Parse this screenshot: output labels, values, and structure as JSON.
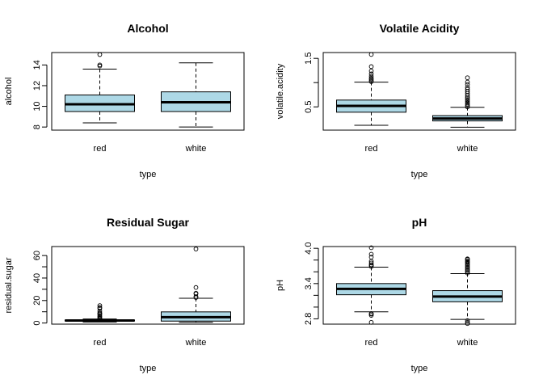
{
  "chart_data": [
    {
      "type": "boxplot",
      "title": "Alcohol",
      "xlabel": "type",
      "ylabel": "alcohol",
      "categories": [
        "red",
        "white"
      ],
      "ylim": [
        7.7,
        15.2
      ],
      "yticks": [
        8,
        10,
        12,
        14
      ],
      "fill_color": "#add8e6",
      "boxes": [
        {
          "name": "red",
          "whisker_low": 8.4,
          "q1": 9.5,
          "median": 10.2,
          "q3": 11.1,
          "whisker_high": 13.6,
          "outliers": [
            13.9,
            14.0,
            15.0
          ]
        },
        {
          "name": "white",
          "whisker_low": 8.0,
          "q1": 9.5,
          "median": 10.4,
          "q3": 11.4,
          "whisker_high": 14.2,
          "outliers": []
        }
      ]
    },
    {
      "type": "boxplot",
      "title": "Volatile Acidity",
      "xlabel": "type",
      "ylabel": "volatile.acidity",
      "categories": [
        "red",
        "white"
      ],
      "ylim": [
        0.02,
        1.62
      ],
      "yticks": [
        0.5,
        1.0,
        1.5
      ],
      "ytick_labels": [
        "0.5",
        "",
        "1.5"
      ],
      "fill_color": "#add8e6",
      "boxes": [
        {
          "name": "red",
          "whisker_low": 0.12,
          "q1": 0.39,
          "median": 0.52,
          "q3": 0.64,
          "whisker_high": 1.01,
          "outliers": [
            1.02,
            1.04,
            1.07,
            1.09,
            1.13,
            1.18,
            1.24,
            1.33,
            1.58
          ]
        },
        {
          "name": "white",
          "whisker_low": 0.08,
          "q1": 0.21,
          "median": 0.26,
          "q3": 0.32,
          "whisker_high": 0.49,
          "outliers": [
            0.5,
            0.52,
            0.55,
            0.58,
            0.61,
            0.64,
            0.67,
            0.7,
            0.74,
            0.78,
            0.82,
            0.86,
            0.9,
            0.96,
            1.01,
            1.1
          ]
        }
      ]
    },
    {
      "type": "boxplot",
      "title": "Residual Sugar",
      "xlabel": "type",
      "ylabel": "residual.sugar",
      "categories": [
        "red",
        "white"
      ],
      "ylim": [
        -1,
        68
      ],
      "yticks": [
        0,
        10,
        20,
        30,
        40,
        50,
        60
      ],
      "ytick_labels": [
        "0",
        "",
        "20",
        "",
        "40",
        "",
        "60"
      ],
      "fill_color": "#add8e6",
      "boxes": [
        {
          "name": "red",
          "whisker_low": 0.9,
          "q1": 1.9,
          "median": 2.2,
          "q3": 2.6,
          "whisker_high": 3.6,
          "outliers": [
            3.8,
            4.4,
            5.5,
            6.3,
            7.5,
            8.3,
            9.0,
            10.7,
            12.9,
            13.8,
            15.5
          ]
        },
        {
          "name": "white",
          "whisker_low": 0.6,
          "q1": 1.7,
          "median": 5.2,
          "q3": 9.9,
          "whisker_high": 22.0,
          "outliers": [
            22.6,
            23.5,
            26.0,
            26.5,
            31.6,
            65.8
          ]
        }
      ]
    },
    {
      "type": "boxplot",
      "title": "pH",
      "xlabel": "type",
      "ylabel": "pH",
      "categories": [
        "red",
        "white"
      ],
      "ylim": [
        2.71,
        4.03
      ],
      "yticks": [
        2.8,
        3.0,
        3.2,
        3.4,
        3.6,
        3.8,
        4.0
      ],
      "ytick_labels": [
        "2.8",
        "",
        "",
        "3.4",
        "",
        "",
        "4.0"
      ],
      "fill_color": "#add8e6",
      "boxes": [
        {
          "name": "red",
          "whisker_low": 2.92,
          "q1": 3.21,
          "median": 3.31,
          "q3": 3.4,
          "whisker_high": 3.68,
          "outliers": [
            2.74,
            2.86,
            2.88,
            2.89,
            3.69,
            3.71,
            3.72,
            3.75,
            3.78,
            3.85,
            3.9,
            4.01
          ]
        },
        {
          "name": "white",
          "whisker_low": 2.79,
          "q1": 3.09,
          "median": 3.18,
          "q3": 3.28,
          "whisker_high": 3.57,
          "outliers": [
            2.72,
            2.74,
            2.77,
            3.58,
            3.6,
            3.62,
            3.64,
            3.66,
            3.68,
            3.7,
            3.72,
            3.74,
            3.76,
            3.77,
            3.79,
            3.81,
            3.82
          ]
        }
      ]
    }
  ]
}
